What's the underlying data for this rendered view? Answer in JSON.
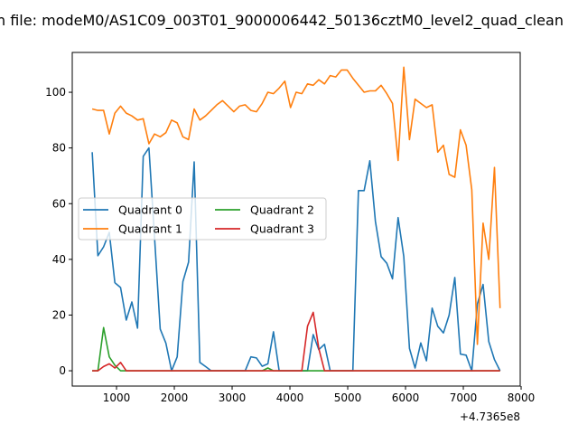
{
  "chart_data": {
    "type": "line",
    "title": "n file: modeM0/AS1C09_003T01_9000006442_50136cztM0_level2_quad_clean",
    "xlabel": "",
    "ylabel": "",
    "x_offset_label": "+4.7365e8",
    "xlim": [
      234,
      7984
    ],
    "ylim": [
      -5.5,
      114.3
    ],
    "xticks": [
      1000,
      2000,
      3000,
      4000,
      5000,
      6000,
      7000,
      8000
    ],
    "xtick_labels": [
      "1000",
      "2000",
      "3000",
      "4000",
      "5000",
      "6000",
      "7000",
      "8000"
    ],
    "yticks": [
      0,
      20,
      40,
      60,
      80,
      100
    ],
    "ytick_labels": [
      "0",
      "20",
      "40",
      "60",
      "80",
      "100"
    ],
    "grid": false,
    "legend": {
      "placement": "center-left",
      "columns": 2
    },
    "x": {
      "start": 580,
      "step": 98,
      "count": 73
    },
    "series": [
      {
        "name": "Quadrant 0",
        "color": "#1f77b4",
        "values": [
          78.5,
          41.3,
          44.5,
          49.7,
          31.6,
          29.9,
          18.2,
          24.7,
          15.3,
          77,
          80,
          48,
          15,
          9.9,
          0,
          5,
          32,
          39,
          75,
          3,
          1.5,
          0,
          0,
          0,
          0,
          0,
          0,
          0,
          5,
          4.6,
          1.6,
          2.5,
          14,
          0,
          0,
          0,
          0,
          0,
          0,
          13,
          7.6,
          9.5,
          0,
          0,
          0,
          0,
          0,
          64.7,
          64.7,
          75.4,
          53.6,
          41,
          38.6,
          33,
          55,
          41,
          8,
          1,
          10,
          3.6,
          22.5,
          16,
          13.6,
          20,
          33.5,
          6,
          5.6,
          0,
          24,
          31,
          10.5,
          4,
          0
        ]
      },
      {
        "name": "Quadrant 1",
        "color": "#ff7f0e",
        "values": [
          94,
          93.5,
          93.5,
          85,
          92.5,
          95,
          92.5,
          91.5,
          90,
          90.5,
          81.5,
          85,
          84,
          85.5,
          90,
          89,
          84,
          83,
          94,
          90,
          91.5,
          93.5,
          95.5,
          97,
          95,
          93,
          95,
          95.5,
          93.5,
          93,
          96,
          100,
          99.5,
          101.5,
          104,
          94.5,
          100,
          99.5,
          103,
          102.5,
          104.5,
          103,
          106,
          105.5,
          108,
          108,
          105,
          102.5,
          100,
          100.5,
          100.5,
          102.5,
          99.5,
          96,
          75.5,
          109,
          83,
          97.5,
          96,
          94.5,
          95.5,
          78.5,
          81,
          70.5,
          69.5,
          86.5,
          81,
          65,
          9.5,
          53,
          40,
          73,
          22.5
        ]
      },
      {
        "name": "Quadrant 2",
        "color": "#2ca02c",
        "values": [
          0,
          0,
          15.5,
          5,
          2,
          0,
          0,
          0,
          0,
          0,
          0,
          0,
          0,
          0,
          0,
          0,
          0,
          0,
          0,
          0,
          0,
          0,
          0,
          0,
          0,
          0,
          0,
          0,
          0,
          0,
          0,
          1,
          0,
          0,
          0,
          0,
          0,
          0,
          0,
          0,
          0,
          0,
          0,
          0,
          0,
          0,
          0,
          0,
          0,
          0,
          0,
          0,
          0,
          0,
          0,
          0,
          0,
          0,
          0,
          0,
          0,
          0,
          0,
          0,
          0,
          0,
          0,
          0,
          0,
          0,
          0,
          0,
          0
        ]
      },
      {
        "name": "Quadrant 3",
        "color": "#d62728",
        "values": [
          0,
          0,
          1.5,
          2.5,
          1,
          3,
          0,
          0,
          0,
          0,
          0,
          0,
          0,
          0,
          0,
          0,
          0,
          0,
          0,
          0,
          0,
          0,
          0,
          0,
          0,
          0,
          0,
          0,
          0,
          0,
          0,
          0,
          0,
          0,
          0,
          0,
          0,
          0,
          16,
          21,
          8,
          0,
          0,
          0,
          0,
          0,
          0,
          0,
          0,
          0,
          0,
          0,
          0,
          0,
          0,
          0,
          0,
          0,
          0,
          0,
          0,
          0,
          0,
          0,
          0,
          0,
          0,
          0,
          0,
          0,
          0,
          0,
          0
        ]
      }
    ]
  }
}
